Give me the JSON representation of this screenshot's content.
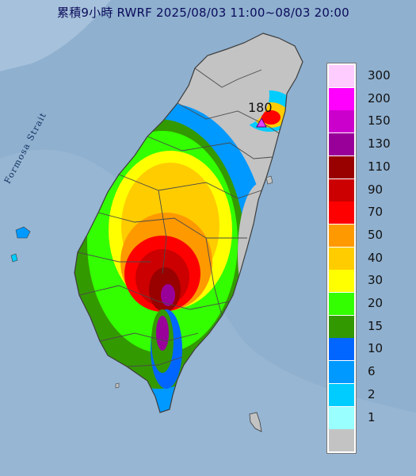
{
  "title": "累積9小時 RWRF 2025/08/03 11:00~08/03 20:00",
  "strait_label": "Formosa Strait",
  "peak": {
    "value": "180",
    "marker": "triangle-marker",
    "marker_color": "#e040ff"
  },
  "colors": {
    "sea": "#8fb0cf",
    "land": "#c3c3c3",
    "border": "#5a5a5a"
  },
  "legend": [
    {
      "label": "300",
      "color": "#ffccff"
    },
    {
      "label": "200",
      "color": "#ff00ff"
    },
    {
      "label": "150",
      "color": "#cc00cc"
    },
    {
      "label": "130",
      "color": "#990099"
    },
    {
      "label": "110",
      "color": "#990000"
    },
    {
      "label": "90",
      "color": "#cc0000"
    },
    {
      "label": "70",
      "color": "#ff0000"
    },
    {
      "label": "50",
      "color": "#ff9900"
    },
    {
      "label": "40",
      "color": "#ffcc00"
    },
    {
      "label": "30",
      "color": "#ffff00"
    },
    {
      "label": "20",
      "color": "#33ff00"
    },
    {
      "label": "15",
      "color": "#339900"
    },
    {
      "label": "10",
      "color": "#0066ff"
    },
    {
      "label": "6",
      "color": "#0099ff"
    },
    {
      "label": "2",
      "color": "#00ccff"
    },
    {
      "label": "1",
      "color": "#99ffff"
    },
    {
      "label": "",
      "color": "#c3c3c3"
    }
  ]
}
